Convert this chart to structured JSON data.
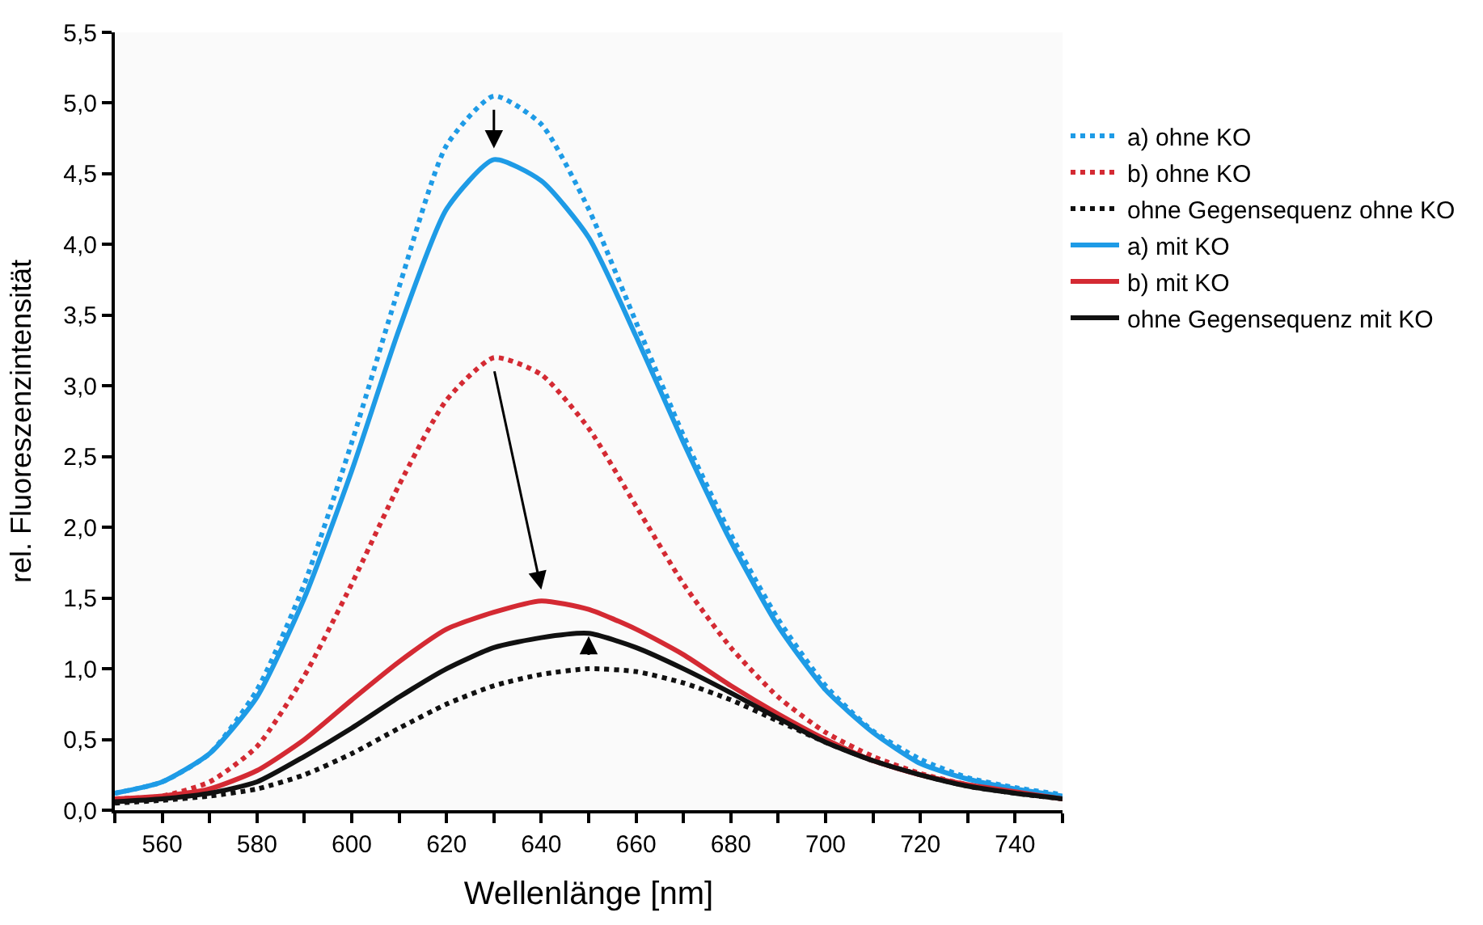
{
  "chart_data": {
    "type": "line",
    "xlabel": "Wellenlänge [nm]",
    "ylabel": "rel. Fluoreszenzintensität",
    "x": [
      550,
      560,
      570,
      580,
      590,
      600,
      610,
      620,
      630,
      640,
      650,
      660,
      670,
      680,
      690,
      700,
      710,
      720,
      730,
      740,
      750
    ],
    "series": [
      {
        "name": "a) ohne KO",
        "color": "#1e9be6",
        "line_style": "dotted",
        "values": [
          0.12,
          0.2,
          0.4,
          0.85,
          1.6,
          2.6,
          3.7,
          4.7,
          5.05,
          4.85,
          4.25,
          3.45,
          2.65,
          1.95,
          1.35,
          0.88,
          0.56,
          0.36,
          0.23,
          0.16,
          0.11
        ]
      },
      {
        "name": "b) ohne KO",
        "color": "#d42a33",
        "line_style": "dotted",
        "values": [
          0.08,
          0.1,
          0.2,
          0.45,
          0.95,
          1.6,
          2.3,
          2.9,
          3.2,
          3.08,
          2.7,
          2.15,
          1.6,
          1.15,
          0.8,
          0.55,
          0.38,
          0.26,
          0.18,
          0.13,
          0.09
        ]
      },
      {
        "name": "ohne Gegensequenz ohne KO",
        "color": "#111111",
        "line_style": "dotted",
        "values": [
          0.05,
          0.07,
          0.1,
          0.15,
          0.25,
          0.4,
          0.58,
          0.75,
          0.88,
          0.96,
          1.0,
          0.98,
          0.9,
          0.78,
          0.63,
          0.48,
          0.35,
          0.25,
          0.17,
          0.12,
          0.08
        ]
      },
      {
        "name": "a) mit KO",
        "color": "#1e9be6",
        "line_style": "solid",
        "values": [
          0.12,
          0.2,
          0.4,
          0.8,
          1.5,
          2.4,
          3.4,
          4.25,
          4.6,
          4.45,
          4.05,
          3.35,
          2.6,
          1.9,
          1.3,
          0.85,
          0.55,
          0.33,
          0.22,
          0.15,
          0.1
        ]
      },
      {
        "name": "b) mit KO",
        "color": "#d42a33",
        "line_style": "solid",
        "values": [
          0.08,
          0.1,
          0.15,
          0.28,
          0.5,
          0.78,
          1.05,
          1.28,
          1.4,
          1.48,
          1.42,
          1.28,
          1.1,
          0.88,
          0.68,
          0.5,
          0.35,
          0.25,
          0.18,
          0.13,
          0.08
        ]
      },
      {
        "name": "ohne Gegensequenz mit KO",
        "color": "#111111",
        "line_style": "solid",
        "values": [
          0.06,
          0.08,
          0.12,
          0.2,
          0.38,
          0.58,
          0.8,
          1.0,
          1.15,
          1.22,
          1.25,
          1.15,
          1.0,
          0.83,
          0.65,
          0.48,
          0.35,
          0.25,
          0.17,
          0.12,
          0.08
        ]
      }
    ],
    "xlim": [
      550,
      750
    ],
    "xticks": [
      {
        "value": 550,
        "label": null
      },
      560,
      {
        "value": 570,
        "label": null
      },
      580,
      {
        "value": 590,
        "label": null
      },
      600,
      {
        "value": 610,
        "label": null
      },
      620,
      {
        "value": 630,
        "label": null
      },
      640,
      {
        "value": 650,
        "label": null
      },
      660,
      {
        "value": 670,
        "label": null
      },
      680,
      {
        "value": 690,
        "label": null
      },
      700,
      {
        "value": 710,
        "label": null
      },
      720,
      {
        "value": 730,
        "label": null
      },
      740,
      {
        "value": 750,
        "label": null
      }
    ],
    "ylim": [
      0,
      5.5
    ],
    "yticks": [
      {
        "value": 0,
        "label": "0,0"
      },
      {
        "value": 0.5,
        "label": "0,5"
      },
      {
        "value": 1,
        "label": "1,0"
      },
      {
        "value": 1.5,
        "label": "1,5"
      },
      {
        "value": 2,
        "label": "2,0"
      },
      {
        "value": 2.5,
        "label": "2,5"
      },
      {
        "value": 3,
        "label": "3,0"
      },
      {
        "value": 3.5,
        "label": "3,5"
      },
      {
        "value": 4,
        "label": "4,0"
      },
      {
        "value": 4.5,
        "label": "4,5"
      },
      {
        "value": 5,
        "label": "5,0"
      },
      {
        "value": 5.5,
        "label": "5,5"
      }
    ],
    "legend": "right",
    "marker": "none"
  }
}
